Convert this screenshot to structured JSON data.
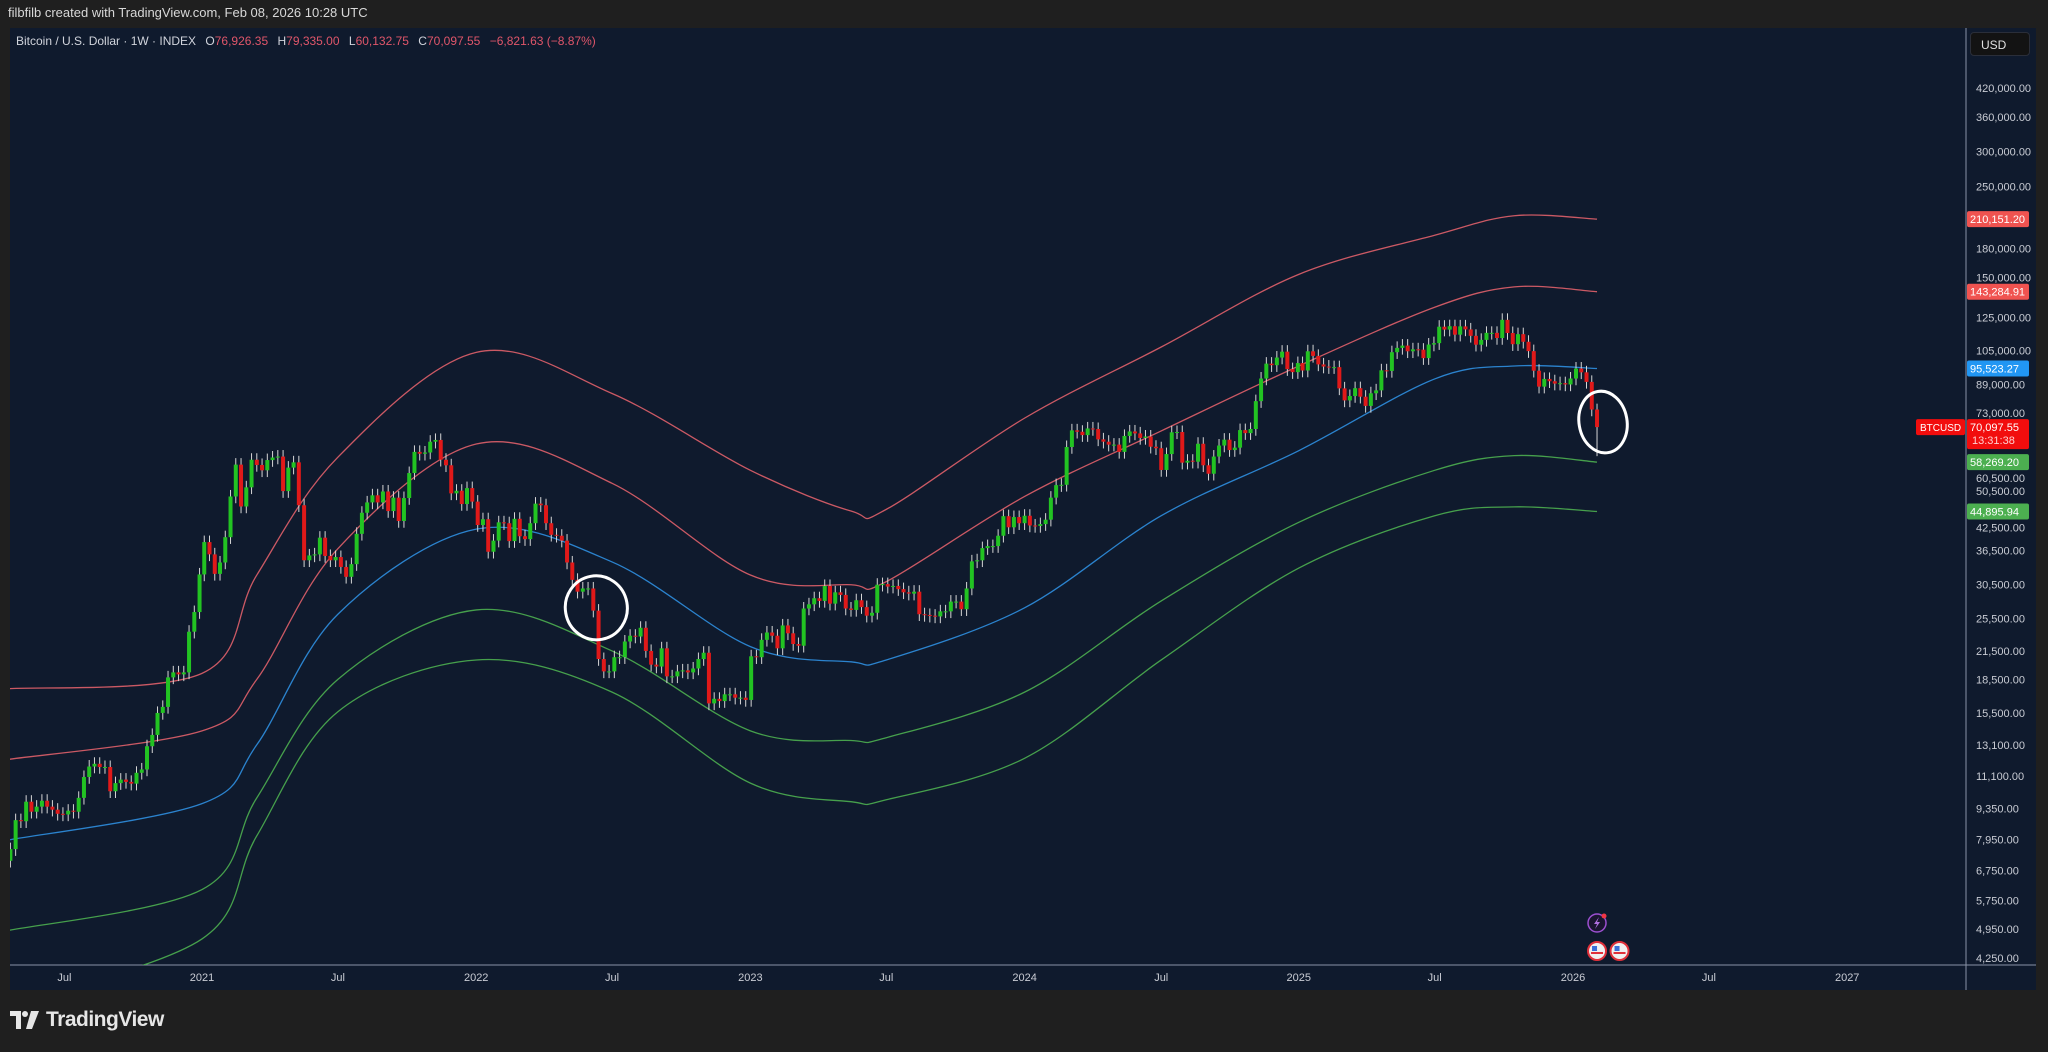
{
  "credit": "filbfilb created with TradingView.com, Feb 08, 2026 10:28 UTC",
  "legend": {
    "symbol": "Bitcoin / U.S. Dollar · 1W · INDEX",
    "o_label": "O",
    "o": "76,926.35",
    "h_label": "H",
    "h": "79,335.00",
    "l_label": "L",
    "l": "60,132.75",
    "c_label": "C",
    "c": "70,097.55",
    "change": "−6,821.63 (−8.87%)"
  },
  "currency_button": "USD",
  "logo_text": "TradingView",
  "colors": {
    "background": "#0f1a2d",
    "up": "#22c322",
    "down": "#e01919",
    "wick": "#d6d6d6",
    "band_red": "#e0606a",
    "band_blue": "#2f8fe0",
    "band_green": "#4caf50",
    "annotation": "#ffffff"
  },
  "chart_data": {
    "type": "candlestick",
    "symbol": "BTCUSD",
    "interval": "1W",
    "price_scale": "log",
    "ylim": [
      4250,
      420000
    ],
    "xlim": [
      "2020-04-13",
      "2027-03-01"
    ],
    "grid": false,
    "price_ticks": [
      420000,
      360000,
      300000,
      250000,
      180000,
      150000,
      125000,
      105000,
      89000,
      73000,
      60500,
      50500,
      42500,
      36500,
      30500,
      25500,
      21500,
      18500,
      15500,
      13100,
      11100,
      9350,
      7950,
      6750,
      5750,
      4950,
      4250
    ],
    "time_ticks": [
      {
        "label": "Jul",
        "date": "2020-07-01"
      },
      {
        "label": "2021",
        "date": "2021-01-01"
      },
      {
        "label": "Jul",
        "date": "2021-07-01"
      },
      {
        "label": "2022",
        "date": "2022-01-01"
      },
      {
        "label": "Jul",
        "date": "2022-07-01"
      },
      {
        "label": "2023",
        "date": "2023-01-01"
      },
      {
        "label": "Jul",
        "date": "2023-07-01"
      },
      {
        "label": "2024",
        "date": "2024-01-01"
      },
      {
        "label": "Jul",
        "date": "2024-07-01"
      },
      {
        "label": "2025",
        "date": "2025-01-01"
      },
      {
        "label": "Jul",
        "date": "2025-07-01"
      },
      {
        "label": "2026",
        "date": "2026-01-01"
      },
      {
        "label": "Jul",
        "date": "2026-07-01"
      },
      {
        "label": "2027",
        "date": "2027-01-01"
      }
    ],
    "first_candle_date": "2020-04-13",
    "weekly_closes": [
      7100,
      7550,
      8800,
      8750,
      9700,
      9200,
      9450,
      9750,
      9450,
      9300,
      9100,
      9070,
      9250,
      9200,
      9900,
      11050,
      11680,
      11850,
      11650,
      11650,
      10250,
      10700,
      10900,
      10770,
      10670,
      11300,
      11500,
      13000,
      13800,
      15500,
      16000,
      18700,
      19200,
      19000,
      19200,
      23800,
      26400,
      32200,
      38200,
      35800,
      32300,
      34300,
      39200,
      48600,
      57500,
      46100,
      51000,
      59000,
      57400,
      55800,
      58900,
      59700,
      60000,
      50000,
      56600,
      58200,
      46400,
      34700,
      35600,
      35800,
      39100,
      35500,
      34700,
      35300,
      33500,
      31800,
      34000,
      39900,
      44600,
      47100,
      48900,
      47100,
      49900,
      45000,
      48300,
      42700,
      48200,
      55000,
      61500,
      60900,
      61300,
      64900,
      65500,
      59000,
      57300,
      49400,
      50100,
      46700,
      50800,
      47300,
      41800,
      43100,
      36300,
      38500,
      42400,
      42200,
      38400,
      43200,
      39400,
      38800,
      42200,
      46800,
      46400,
      42200,
      39700,
      39500,
      38500,
      34300,
      31300,
      29400,
      29900,
      29900,
      26600,
      20600,
      19300,
      19300,
      20800,
      20800,
      22600,
      23300,
      23200,
      24300,
      21500,
      20000,
      19800,
      21800,
      18800,
      18800,
      19300,
      19400,
      19200,
      19600,
      20600,
      21300,
      16300,
      16700,
      16500,
      17100,
      17100,
      16800,
      16800,
      16600,
      20900,
      20800,
      22800,
      23700,
      23300,
      21800,
      24600,
      23600,
      22300,
      22100,
      26900,
      27500,
      28400,
      28000,
      30300,
      27600,
      29300,
      28900,
      26900,
      26700,
      28100,
      27100,
      25900,
      26300,
      30500,
      30600,
      30200,
      30300,
      29800,
      29300,
      29100,
      29400,
      26100,
      26000,
      25900,
      25800,
      26500,
      26500,
      27900,
      27900,
      26800,
      29900,
      34500,
      34700,
      37000,
      37400,
      37400,
      39500,
      43800,
      41300,
      43600,
      42200,
      43900,
      41700,
      41600,
      42000,
      43000,
      48300,
      51600,
      51700,
      63100,
      68900,
      68400,
      67200,
      69600,
      69400,
      65700,
      64900,
      63900,
      63900,
      61500,
      66900,
      68500,
      67800,
      66200,
      66700,
      63200,
      62700,
      55900,
      60800,
      68200,
      68300,
      58100,
      58700,
      58400,
      64200,
      57300,
      54800,
      60000,
      63600,
      65600,
      62100,
      62900,
      69000,
      67900,
      69400,
      80400,
      90600,
      98000,
      97200,
      101200,
      104400,
      95200,
      93700,
      98300,
      94500,
      104600,
      102100,
      97600,
      96500,
      96200,
      96200,
      86000,
      80700,
      82600,
      86100,
      82300,
      78400,
      83800,
      85100,
      94600,
      94300,
      104100,
      106500,
      107800,
      104600,
      105700,
      105500,
      100900,
      108400,
      109200,
      119100,
      117300,
      119400,
      114200,
      119300,
      117400,
      113500,
      108300,
      111100,
      115300,
      115300,
      112200,
      123500,
      115200,
      108600,
      114500,
      110000,
      104700,
      94400,
      86800,
      90400,
      89300,
      88200,
      88400,
      87800,
      90600,
      95500,
      93600,
      89000,
      76926
    ],
    "last_candle": {
      "date": "2026-02-02",
      "open": 76926.35,
      "high": 79335.0,
      "low": 60132.75,
      "close": 70097.55
    },
    "bands": [
      {
        "key": "upper2",
        "color": "#e0606a",
        "last_value": "210,151.20",
        "points": [
          [
            "2020-04-13",
            17600
          ],
          [
            "2021-01-01",
            19100
          ],
          [
            "2021-03-15",
            32100
          ],
          [
            "2021-07-01",
            59800
          ],
          [
            "2022-01-01",
            104000
          ],
          [
            "2022-07-01",
            83700
          ],
          [
            "2023-01-01",
            55800
          ],
          [
            "2023-05-15",
            45000
          ],
          [
            "2023-07-01",
            45400
          ],
          [
            "2024-01-01",
            73500
          ],
          [
            "2024-07-01",
            107000
          ],
          [
            "2025-01-01",
            157000
          ],
          [
            "2025-07-01",
            193000
          ],
          [
            "2025-10-15",
            214000
          ],
          [
            "2026-02-02",
            210151
          ]
        ]
      },
      {
        "key": "upper1",
        "color": "#e0606a",
        "last_value": "143,284.91",
        "points": [
          [
            "2020-04-13",
            12100
          ],
          [
            "2021-01-01",
            14100
          ],
          [
            "2021-03-15",
            18500
          ],
          [
            "2021-07-01",
            36900
          ],
          [
            "2022-01-01",
            64100
          ],
          [
            "2022-07-01",
            52100
          ],
          [
            "2023-01-01",
            32100
          ],
          [
            "2023-05-15",
            30500
          ],
          [
            "2023-07-01",
            31000
          ],
          [
            "2024-01-01",
            48600
          ],
          [
            "2024-07-01",
            68700
          ],
          [
            "2025-01-01",
            96800
          ],
          [
            "2025-07-01",
            132000
          ],
          [
            "2025-10-15",
            147000
          ],
          [
            "2026-02-02",
            143285
          ]
        ]
      },
      {
        "key": "mid",
        "color": "#2f8fe0",
        "last_value": "95,523.27",
        "points": [
          [
            "2020-04-13",
            7900
          ],
          [
            "2021-01-01",
            9600
          ],
          [
            "2021-03-15",
            13100
          ],
          [
            "2021-07-01",
            26100
          ],
          [
            "2022-01-01",
            40900
          ],
          [
            "2022-07-01",
            34400
          ],
          [
            "2023-01-01",
            22000
          ],
          [
            "2023-05-15",
            20300
          ],
          [
            "2023-07-01",
            20500
          ],
          [
            "2024-01-01",
            27000
          ],
          [
            "2024-07-01",
            43900
          ],
          [
            "2025-01-01",
            61900
          ],
          [
            "2025-07-01",
            90400
          ],
          [
            "2025-10-15",
            96800
          ],
          [
            "2026-02-02",
            95523
          ]
        ]
      },
      {
        "key": "lower1",
        "color": "#4caf50",
        "last_value": "58,269.20",
        "points": [
          [
            "2020-04-13",
            4900
          ],
          [
            "2021-01-01",
            6100
          ],
          [
            "2021-03-15",
            9900
          ],
          [
            "2021-07-01",
            18500
          ],
          [
            "2022-01-01",
            26700
          ],
          [
            "2022-07-01",
            21500
          ],
          [
            "2023-01-01",
            14100
          ],
          [
            "2023-05-15",
            13400
          ],
          [
            "2023-07-01",
            13600
          ],
          [
            "2024-01-01",
            17300
          ],
          [
            "2024-07-01",
            28000
          ],
          [
            "2025-01-01",
            42400
          ],
          [
            "2025-07-01",
            55800
          ],
          [
            "2025-10-15",
            60300
          ],
          [
            "2026-02-02",
            58269
          ]
        ]
      },
      {
        "key": "lower2",
        "color": "#4caf50",
        "last_value": "44,895.94",
        "points": [
          [
            "2020-04-13",
            3300
          ],
          [
            "2021-01-01",
            4700
          ],
          [
            "2021-03-15",
            8100
          ],
          [
            "2021-07-01",
            15600
          ],
          [
            "2022-01-01",
            20500
          ],
          [
            "2022-07-01",
            17300
          ],
          [
            "2023-01-01",
            10700
          ],
          [
            "2023-05-15",
            9700
          ],
          [
            "2023-07-01",
            9800
          ],
          [
            "2024-01-01",
            12200
          ],
          [
            "2024-07-01",
            20500
          ],
          [
            "2025-01-01",
            33300
          ],
          [
            "2025-07-01",
            43900
          ],
          [
            "2025-10-15",
            46000
          ],
          [
            "2026-02-02",
            44896
          ]
        ]
      }
    ],
    "last_price_label": {
      "symbol": "BTCUSD",
      "price": "70,097.55",
      "countdown": "13:31:38",
      "color": "#f20d0d"
    },
    "annotations": [
      {
        "type": "hand-drawn-circle",
        "date": "2022-06-10",
        "price": 27000
      },
      {
        "type": "hand-drawn-circle",
        "date": "2026-02-10",
        "price": 72000
      }
    ],
    "events": [
      {
        "icon": "lightning-icon",
        "date": "2026-02-02"
      },
      {
        "icon": "us-flag-icon",
        "date": "2026-02-02"
      },
      {
        "icon": "us-flag-icon",
        "date": "2026-02-16"
      }
    ]
  }
}
